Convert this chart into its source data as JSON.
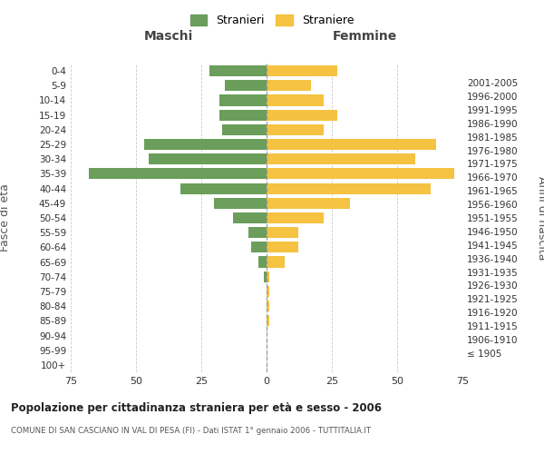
{
  "age_groups": [
    "100+",
    "95-99",
    "90-94",
    "85-89",
    "80-84",
    "75-79",
    "70-74",
    "65-69",
    "60-64",
    "55-59",
    "50-54",
    "45-49",
    "40-44",
    "35-39",
    "30-34",
    "25-29",
    "20-24",
    "15-19",
    "10-14",
    "5-9",
    "0-4"
  ],
  "birth_years": [
    "≤ 1905",
    "1906-1910",
    "1911-1915",
    "1916-1920",
    "1921-1925",
    "1926-1930",
    "1931-1935",
    "1936-1940",
    "1941-1945",
    "1946-1950",
    "1951-1955",
    "1956-1960",
    "1961-1965",
    "1966-1970",
    "1971-1975",
    "1976-1980",
    "1981-1985",
    "1986-1990",
    "1991-1995",
    "1996-2000",
    "2001-2005"
  ],
  "maschi": [
    0,
    0,
    0,
    0,
    0,
    0,
    1,
    3,
    6,
    7,
    13,
    20,
    33,
    68,
    45,
    47,
    17,
    18,
    18,
    16,
    22
  ],
  "femmine": [
    0,
    0,
    0,
    1,
    1,
    1,
    1,
    7,
    12,
    12,
    22,
    32,
    63,
    72,
    57,
    65,
    22,
    27,
    22,
    17,
    27
  ],
  "maschi_color": "#6a9e5a",
  "femmine_color": "#f5c242",
  "background_color": "#ffffff",
  "grid_color": "#cccccc",
  "title": "Popolazione per cittadinanza straniera per età e sesso - 2006",
  "subtitle": "COMUNE DI SAN CASCIANO IN VAL DI PESA (FI) - Dati ISTAT 1° gennaio 2006 - TUTTITALIA.IT",
  "xlabel_left": "Maschi",
  "xlabel_right": "Femmine",
  "ylabel_left": "Fasce di età",
  "ylabel_right": "Anni di nascita",
  "legend_maschi": "Stranieri",
  "legend_femmine": "Straniere",
  "xlim": 75
}
